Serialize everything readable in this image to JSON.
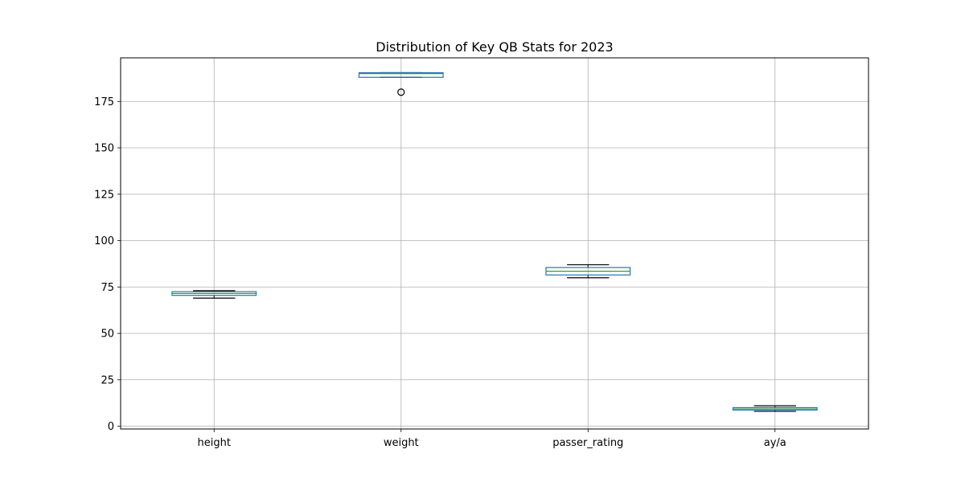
{
  "chart_data": {
    "type": "box",
    "title": "Distribution of Key QB Stats for 2023",
    "xlabel": "",
    "ylabel": "",
    "ylim": [
      -1.5,
      198.5
    ],
    "yticks": [
      0,
      25,
      50,
      75,
      100,
      125,
      150,
      175
    ],
    "grid": true,
    "colors": {
      "box": "#1f77b4",
      "median": "#2ca02c",
      "whisker": "#000000",
      "grid": "#b0b0b0"
    },
    "categories": [
      "height",
      "weight",
      "passer_rating",
      "ay/a"
    ],
    "boxes": [
      {
        "name": "height",
        "whisker_low": 69,
        "q1": 70.5,
        "median": 71.5,
        "q3": 72.5,
        "whisker_high": 73,
        "outliers": []
      },
      {
        "name": "weight",
        "whisker_low": 188,
        "q1": 188,
        "median": 190,
        "q3": 190.5,
        "whisker_high": 190.5,
        "outliers": [
          180
        ]
      },
      {
        "name": "passer_rating",
        "whisker_low": 80,
        "q1": 81.5,
        "median": 83.5,
        "q3": 85.5,
        "whisker_high": 87,
        "outliers": []
      },
      {
        "name": "ay/a",
        "whisker_low": 8,
        "q1": 8.7,
        "median": 9.3,
        "q3": 10,
        "whisker_high": 11,
        "outliers": []
      }
    ]
  }
}
